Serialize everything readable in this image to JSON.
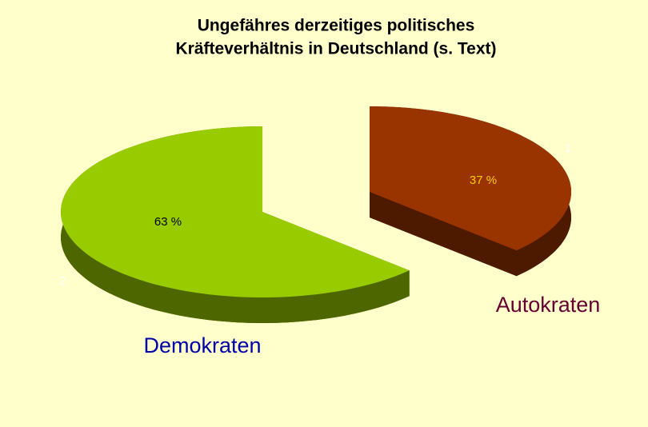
{
  "chart_data": {
    "type": "pie3d",
    "title": [
      "Ungefähres derzeitiges politisches",
      "Kräfteverhältnis in Deutschland (s. Text)"
    ],
    "categories": [
      "Autokraten",
      "Demokraten"
    ],
    "values": [
      37,
      63
    ],
    "value_labels": [
      "37 %",
      "63 %"
    ],
    "slice_numbers": [
      "1",
      "2"
    ],
    "colors": [
      "#993300",
      "#99cc00"
    ],
    "category_label_colors": [
      "#660033",
      "#0000aa"
    ],
    "value_label_colors": [
      "#ffcc00",
      "#000000"
    ]
  }
}
